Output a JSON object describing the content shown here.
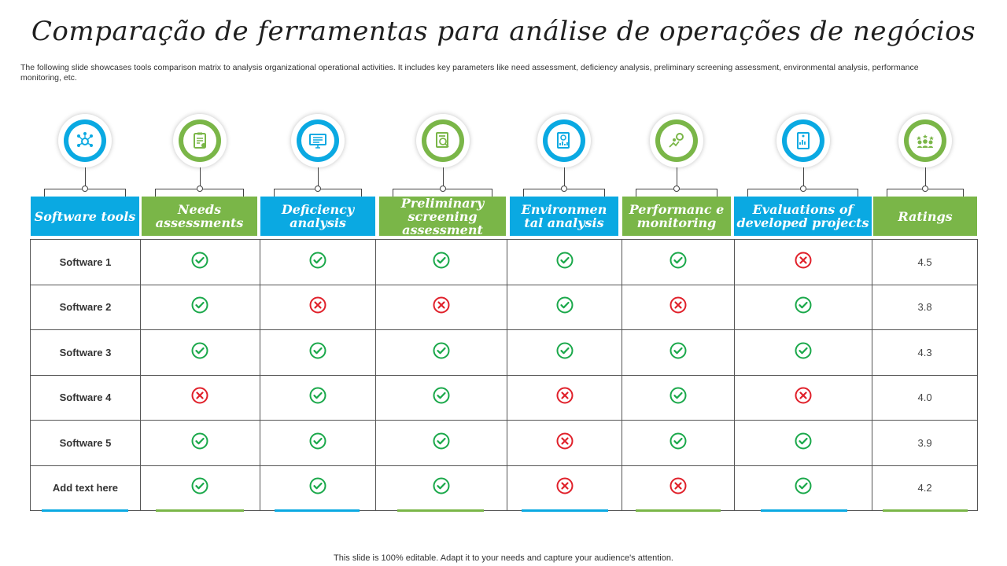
{
  "title": "Comparação de ferramentas para análise de operações de negócios",
  "description": "The following slide showcases tools comparison matrix to analysis organizational operational activities. It includes key parameters like need assessment, deficiency analysis, preliminary screening assessment, environmental analysis, performance monitoring, etc.",
  "footer": "This slide is 100% editable. Adapt it to your needs and capture your audience's attention.",
  "columns": [
    {
      "label": "Software tools",
      "color": "blue",
      "icon": "network-icon"
    },
    {
      "label": "Needs assessments",
      "color": "green",
      "icon": "clipboard-check-icon"
    },
    {
      "label": "Deficiency analysis",
      "color": "blue",
      "icon": "monitor-document-icon"
    },
    {
      "label": "Preliminary screening assessment",
      "color": "green",
      "icon": "document-search-icon"
    },
    {
      "label": "Environmen tal analysis",
      "color": "blue",
      "icon": "report-chart-icon"
    },
    {
      "label": "Performanc e monitoring",
      "color": "green",
      "icon": "performance-gear-icon"
    },
    {
      "label": "Evaluations of developed projects",
      "color": "blue",
      "icon": "evaluation-report-icon"
    },
    {
      "label": "Ratings",
      "color": "green",
      "icon": "team-rating-icon"
    }
  ],
  "rows": [
    {
      "name": "Software 1",
      "marks": [
        "check",
        "check",
        "check",
        "check",
        "check",
        "cross"
      ],
      "rating": "4.5"
    },
    {
      "name": "Software 2",
      "marks": [
        "check",
        "cross",
        "cross",
        "check",
        "cross",
        "check"
      ],
      "rating": "3.8"
    },
    {
      "name": "Software 3",
      "marks": [
        "check",
        "check",
        "check",
        "check",
        "check",
        "check"
      ],
      "rating": "4.3"
    },
    {
      "name": "Software 4",
      "marks": [
        "cross",
        "check",
        "check",
        "cross",
        "check",
        "cross"
      ],
      "rating": "4.0"
    },
    {
      "name": "Software 5",
      "marks": [
        "check",
        "check",
        "check",
        "cross",
        "check",
        "check"
      ],
      "rating": "3.9"
    },
    {
      "name": "Add text here",
      "marks": [
        "check",
        "check",
        "check",
        "cross",
        "cross",
        "check"
      ],
      "rating": "4.2"
    }
  ],
  "colors": {
    "blue": "#0aa9e2",
    "green": "#7ab648",
    "check": "#1aa84a",
    "cross": "#e0202a"
  }
}
